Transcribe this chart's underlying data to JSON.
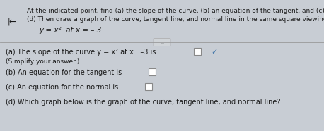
{
  "bg_color": "#c8cdd4",
  "text_color": "#1a1a1a",
  "box_color": "#ffffff",
  "box_edge_color": "#888888",
  "divider_color": "#999999",
  "arrow_color": "#333333",
  "check_color": "#4477aa",
  "title_line1": "At the indicated point, find (a) the slope of the curve, (b) an equation of the tangent, and (c) an equation of the normal.",
  "title_line2": "(d) Then draw a graph of the curve, tangent line, and normal line in the same square viewing window.",
  "equation": "y = x²  at x = – 3",
  "part_a": "(a) The slope of the curve y = x² at x:  –3 is",
  "part_a_note": "(Simplify your answer.)",
  "part_b": "(b) An equation for the tangent is",
  "part_c": "(c) An equation for the normal is",
  "part_d": "(d) Which graph below is the graph of the curve, tangent line, and normal line?",
  "font_size_title": 6.5,
  "font_size_body": 7.0,
  "font_size_eq": 7.5
}
